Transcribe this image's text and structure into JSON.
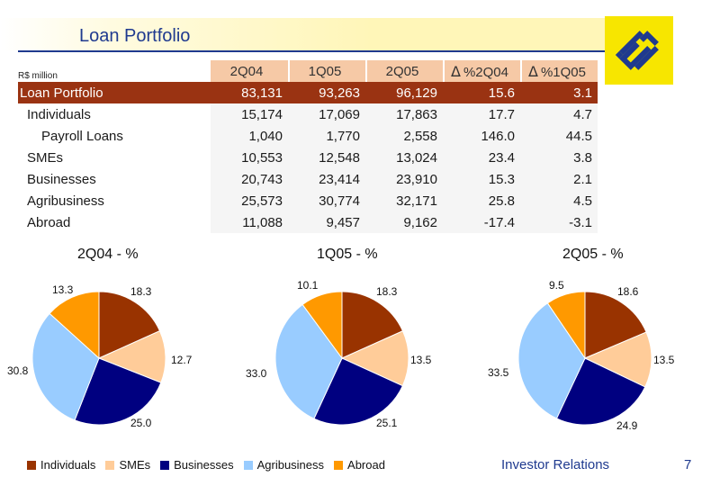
{
  "header": {
    "title": "Loan Portfolio",
    "unit": "R$ million"
  },
  "colors": {
    "individuals": "#993300",
    "smes": "#ffcc99",
    "businesses": "#000080",
    "agribusiness": "#99ccff",
    "abroad": "#ff9900"
  },
  "table": {
    "columns": [
      "2Q04",
      "1Q05",
      "2Q05",
      "%2Q04",
      "%1Q05"
    ],
    "delta_symbol": "Δ",
    "rows": [
      {
        "label": "Loan Portfolio",
        "values": [
          "83,131",
          "93,263",
          "96,129",
          "15.6",
          "3.1"
        ]
      },
      {
        "label": "Individuals",
        "values": [
          "15,174",
          "17,069",
          "17,863",
          "17.7",
          "4.7"
        ]
      },
      {
        "label": "Payroll Loans",
        "values": [
          "1,040",
          "1,770",
          "2,558",
          "146.0",
          "44.5"
        ]
      },
      {
        "label": "SMEs",
        "values": [
          "10,553",
          "12,548",
          "13,024",
          "23.4",
          "3.8"
        ]
      },
      {
        "label": "Businesses",
        "values": [
          "20,743",
          "23,414",
          "23,910",
          "15.3",
          "2.1"
        ]
      },
      {
        "label": "Agribusiness",
        "values": [
          "25,573",
          "30,774",
          "32,171",
          "25.8",
          "4.5"
        ]
      },
      {
        "label": "Abroad",
        "values": [
          "11,088",
          "9,457",
          "9,162",
          "-17.4",
          "-3.1"
        ]
      }
    ]
  },
  "chart_data": [
    {
      "type": "pie",
      "title": "2Q04 - %",
      "categories": [
        "Individuals",
        "SMEs",
        "Businesses",
        "Agribusiness",
        "Abroad"
      ],
      "values": [
        18.3,
        12.7,
        25.0,
        30.8,
        13.3
      ],
      "labels": [
        "18.3",
        "12.7",
        "25.0",
        "30.8",
        "13.3"
      ]
    },
    {
      "type": "pie",
      "title": "1Q05 - %",
      "categories": [
        "Individuals",
        "SMEs",
        "Businesses",
        "Agribusiness",
        "Abroad"
      ],
      "values": [
        18.3,
        13.5,
        25.1,
        33.0,
        10.1
      ],
      "labels": [
        "18.3",
        "13.5",
        "25.1",
        "33.0",
        "10.1"
      ]
    },
    {
      "type": "pie",
      "title": "2Q05 - %",
      "categories": [
        "Individuals",
        "SMEs",
        "Businesses",
        "Agribusiness",
        "Abroad"
      ],
      "values": [
        18.6,
        13.5,
        24.9,
        33.5,
        9.5
      ],
      "labels": [
        "18.6",
        "13.5",
        "24.9",
        "33.5",
        "9.5"
      ]
    }
  ],
  "legend": [
    "Individuals",
    "SMEs",
    "Businesses",
    "Agribusiness",
    "Abroad"
  ],
  "footer": {
    "org": "Investor Relations",
    "page": "7"
  }
}
